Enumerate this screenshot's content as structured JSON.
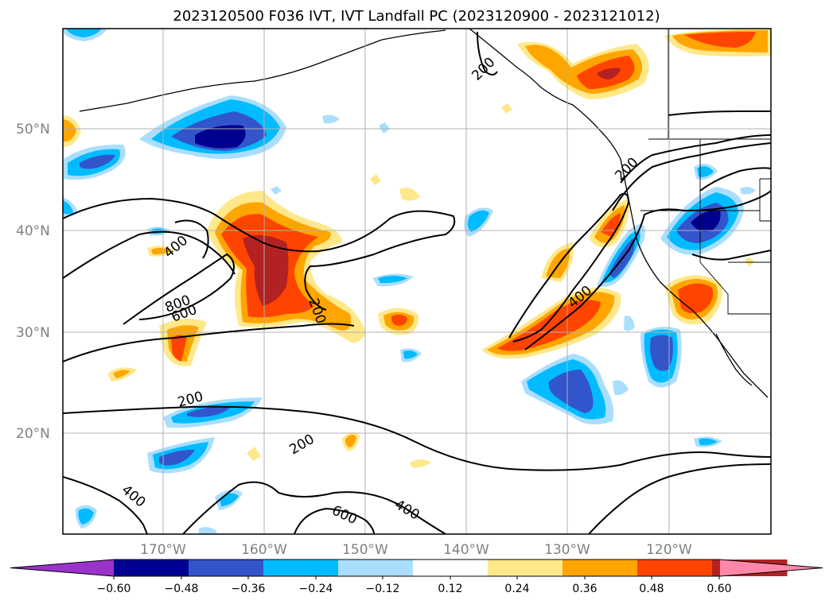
{
  "title": "2023120500 F036 IVT, IVT Landfall PC (2023120900 - 2023121012)",
  "lat_labels": [
    "50°N",
    "40°N",
    "30°N",
    "20°N"
  ],
  "lon_labels": [
    "170°W",
    "160°W",
    "150°W",
    "140°W",
    "130°W",
    "120°W"
  ],
  "contour_labels": [
    "200",
    "400",
    "600",
    "800"
  ],
  "colorbar": {
    "ticks": [
      "-0.60",
      "-0.48",
      "-0.36",
      "-0.24",
      "-0.12",
      "0.12",
      "0.24",
      "0.36",
      "0.48",
      "0.60"
    ],
    "colors": [
      "#9933cc",
      "#000090",
      "#3355cc",
      "#00bbff",
      "#aadeff",
      "#ffffff",
      "#ffe88a",
      "#ffa500",
      "#ff4400",
      "#b22222",
      "#ff88aa"
    ]
  }
}
